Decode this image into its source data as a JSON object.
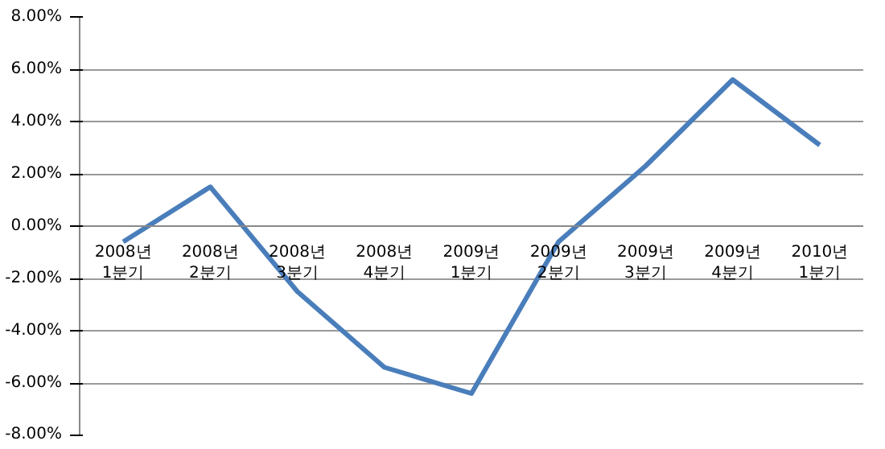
{
  "chart_data": {
    "type": "line",
    "categories": [
      "2008년\n1분기",
      "2008년\n2분기",
      "2008년\n3분기",
      "2008년\n4분기",
      "2009년\n1분기",
      "2009년\n2분기",
      "2009년\n3분기",
      "2009년\n4분기",
      "2010년\n1분기"
    ],
    "series": [
      {
        "color": "#4a7ebb",
        "values": [
          -0.6,
          1.5,
          -2.5,
          -5.4,
          -6.4,
          -0.6,
          2.3,
          5.6,
          3.1
        ]
      }
    ],
    "ylim": [
      -8,
      8
    ],
    "yticks": [
      {
        "value": -8,
        "label": "-8.00%"
      },
      {
        "value": -6,
        "label": "-6.00%"
      },
      {
        "value": -4,
        "label": "-4.00%"
      },
      {
        "value": -2,
        "label": "-2.00%"
      },
      {
        "value": 0,
        "label": "0.00%"
      },
      {
        "value": 2,
        "label": "2.00%"
      },
      {
        "value": 4,
        "label": "4.00%"
      },
      {
        "value": 6,
        "label": "6.00%"
      },
      {
        "value": 8,
        "label": "8.00%"
      }
    ],
    "grid": "y",
    "marker": "none",
    "line_style": "solid"
  }
}
